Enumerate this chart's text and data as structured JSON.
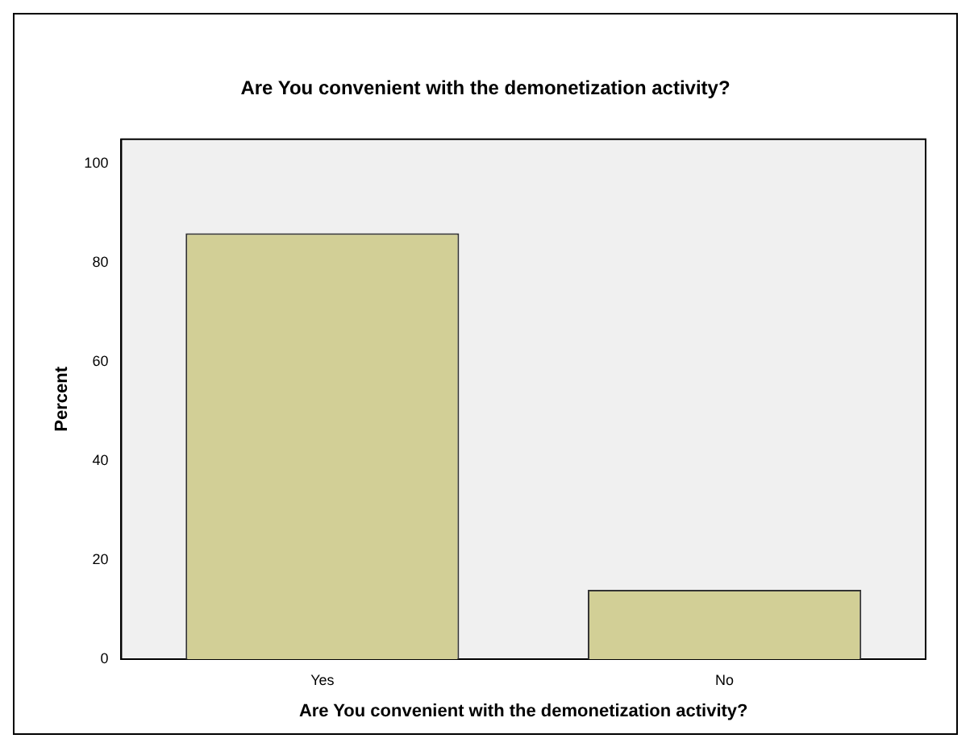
{
  "chart_data": {
    "type": "bar",
    "title": "Are You convenient with the demonetization activity?",
    "xlabel": "Are You convenient with the demonetization activity?",
    "ylabel": "Percent",
    "categories": [
      "Yes",
      "No"
    ],
    "values": [
      86,
      14
    ],
    "color": "#d2cf96",
    "ylim": [
      0,
      105
    ],
    "yticks": [
      0,
      20,
      40,
      60,
      80,
      100
    ],
    "grid": false,
    "legend": false
  }
}
